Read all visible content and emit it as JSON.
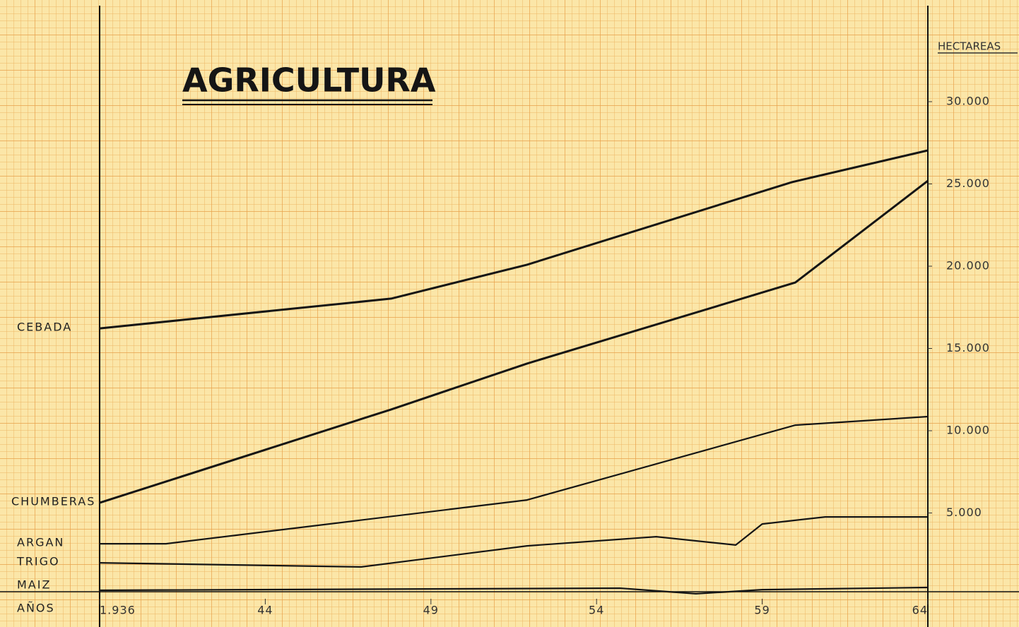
{
  "chart_data": {
    "type": "line",
    "title": "AGRICULTURA",
    "x_label": "AÑOS",
    "y_label": "HECTAREAS",
    "xlim": [
      1936,
      1964
    ],
    "xticks": [
      {
        "value": 1936,
        "label": "1.936"
      },
      {
        "value": 1944,
        "label": "44"
      },
      {
        "value": 1949,
        "label": "49"
      },
      {
        "value": 1954,
        "label": "54"
      },
      {
        "value": 1959,
        "label": "59"
      },
      {
        "value": 1964,
        "label": "64"
      }
    ],
    "ylim": [
      0,
      35000
    ],
    "yticks": [
      {
        "value": 5000,
        "label": "5.000"
      },
      {
        "value": 10000,
        "label": "10.000"
      },
      {
        "value": 15000,
        "label": "15.000"
      },
      {
        "value": 20000,
        "label": "20.000"
      },
      {
        "value": 25000,
        "label": "25.000"
      },
      {
        "value": 30000,
        "label": "30.000"
      }
    ],
    "series": [
      {
        "name": "CEBADA",
        "color": "#151515",
        "x": [
          1936,
          1947.8,
          1951.9,
          1959.9,
          1964
        ],
        "values": [
          16220,
          18030,
          20090,
          25110,
          27040
        ]
      },
      {
        "name": "CHUMBERAS",
        "color": "#151515",
        "x": [
          1936,
          1947.8,
          1951.9,
          1960.0,
          1964
        ],
        "values": [
          5620,
          11290,
          14080,
          19010,
          25190
        ]
      },
      {
        "name": "ARGAN",
        "color": "#151515",
        "x": [
          1936,
          1939.2,
          1951.9,
          1960.0,
          1964
        ],
        "values": [
          3130,
          3130,
          5790,
          10340,
          10860
        ]
      },
      {
        "name": "TRIGO",
        "color": "#151515",
        "x": [
          1936,
          1946.9,
          1951.9,
          1955.8,
          1958.2,
          1959,
          1960.9,
          1964
        ],
        "values": [
          1970,
          1720,
          3000,
          3560,
          3050,
          4330,
          4760,
          4760
        ]
      },
      {
        "name": "MAIZ",
        "color": "#151515",
        "x": [
          1936,
          1954.7,
          1957.0,
          1959,
          1964
        ],
        "values": [
          300,
          430,
          90,
          340,
          470
        ]
      }
    ]
  }
}
